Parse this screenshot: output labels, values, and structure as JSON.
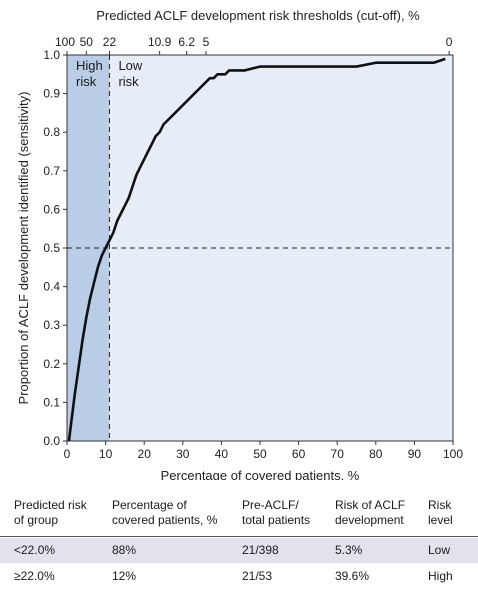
{
  "chart_data": {
    "type": "line",
    "top_axis_title": "Predicted ACLF development risk thresholds (cut-off), %",
    "top_ticks": [
      {
        "label": "100",
        "x": 0
      },
      {
        "label": "50",
        "x": 5
      },
      {
        "label": "22",
        "x": 11
      },
      {
        "label": "10.9",
        "x": 24
      },
      {
        "label": "6.2",
        "x": 31
      },
      {
        "label": "5",
        "x": 36
      },
      {
        "label": "0",
        "x": 99
      }
    ],
    "xlabel": "Percentage of covered patients, %",
    "ylabel": "Proportion of ACLF development identified (sensitivity)",
    "xlim": [
      0,
      100
    ],
    "ylim": [
      0,
      1
    ],
    "x_ticks": [
      0,
      10,
      20,
      30,
      40,
      50,
      60,
      70,
      80,
      90,
      100
    ],
    "y_ticks": [
      "0.0",
      "0.1",
      "0.2",
      "0.3",
      "0.4",
      "0.5",
      "0.6",
      "0.7",
      "0.8",
      "0.9",
      "1.0"
    ],
    "cutoff_x": 11,
    "reference_y": 0.5,
    "high_region_label": "High\nrisk",
    "low_region_label": "Low\nrisk",
    "colors": {
      "high_region": "#b9cde6",
      "low_region": "#e6edf7",
      "curve": "#111111"
    },
    "series": [
      {
        "x": [
          0.5,
          1,
          2,
          3,
          4,
          5,
          6,
          7,
          8,
          9,
          10,
          11,
          12,
          13,
          14,
          15,
          16,
          17,
          18,
          19,
          20,
          21,
          22,
          23,
          24,
          25,
          26,
          27,
          28,
          29,
          30,
          31,
          32,
          33,
          34,
          35,
          36,
          37,
          38,
          39,
          40,
          41,
          42,
          43,
          44,
          46,
          50,
          55,
          60,
          65,
          70,
          75,
          80,
          85,
          90,
          95,
          98
        ],
        "y": [
          0.0,
          0.04,
          0.12,
          0.19,
          0.26,
          0.32,
          0.37,
          0.41,
          0.45,
          0.48,
          0.5,
          0.52,
          0.54,
          0.57,
          0.59,
          0.61,
          0.63,
          0.66,
          0.69,
          0.71,
          0.73,
          0.75,
          0.77,
          0.79,
          0.8,
          0.82,
          0.83,
          0.84,
          0.85,
          0.86,
          0.87,
          0.88,
          0.89,
          0.9,
          0.91,
          0.92,
          0.93,
          0.94,
          0.94,
          0.95,
          0.95,
          0.95,
          0.96,
          0.96,
          0.96,
          0.96,
          0.97,
          0.97,
          0.97,
          0.97,
          0.97,
          0.97,
          0.98,
          0.98,
          0.98,
          0.98,
          0.99
        ]
      }
    ]
  },
  "table": {
    "headers": [
      "Predicted risk\nof group",
      "Percentage of\ncovered patients, %",
      "Pre-ACLF/\ntotal patients",
      "Risk of ACLF\ndevelopment",
      "Risk\nlevel"
    ],
    "rows": [
      [
        "<22.0%",
        "88%",
        "21/398",
        "5.3%",
        "Low"
      ],
      [
        "≥22.0%",
        "12%",
        "21/53",
        "39.6%",
        "High"
      ]
    ]
  }
}
